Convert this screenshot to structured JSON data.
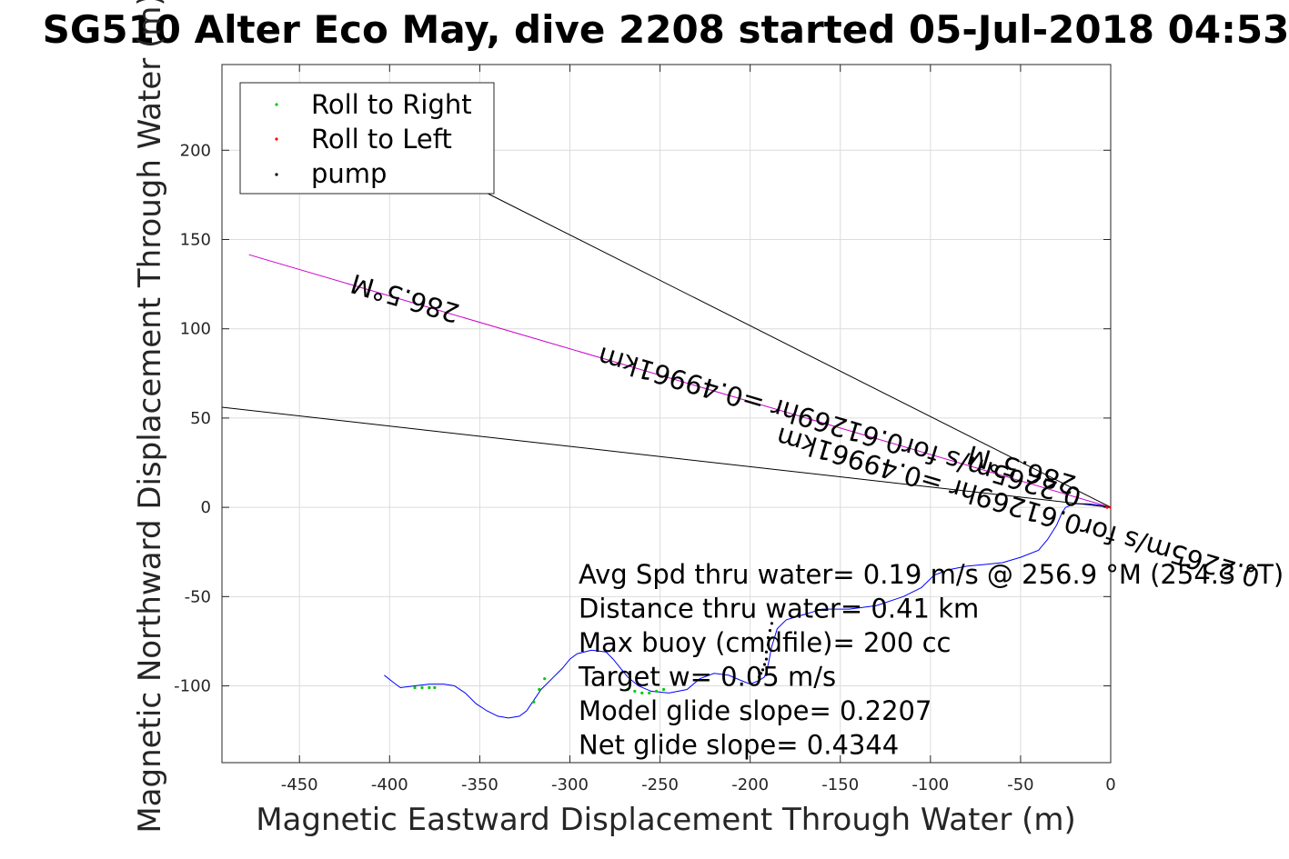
{
  "chart_data": {
    "type": "line",
    "title": "SG510 Alter Eco May, dive 2208 started 05-Jul-2018 04:53",
    "xlabel": "Magnetic Eastward Displacement Through Water (m)",
    "ylabel": "Magnetic Northward Displacement Through Water (m)",
    "xlim": [
      -493,
      0
    ],
    "ylim": [
      -143,
      248
    ],
    "xticks": [
      -450,
      -400,
      -350,
      -300,
      -250,
      -200,
      -150,
      -100,
      -50,
      0
    ],
    "yticks": [
      -100,
      -50,
      0,
      50,
      100,
      150,
      200
    ],
    "grid": true,
    "legend": {
      "placement": "top-left",
      "entries": [
        {
          "label": "Roll to Right",
          "color": "#00cc00"
        },
        {
          "label": "Roll to Left",
          "color": "#ff0000"
        },
        {
          "label": "pump",
          "color": "#000000"
        }
      ]
    },
    "series": [
      {
        "name": "",
        "style": "track",
        "color": "#0000ff",
        "x": [
          0,
          -5,
          -12,
          -20,
          -25,
          -27,
          -30,
          -35,
          -40,
          -50,
          -60,
          -70,
          -80,
          -90,
          -98,
          -105,
          -115,
          -130,
          -145,
          -160,
          -170,
          -180,
          -185,
          -188,
          -190,
          -192,
          -195,
          -200,
          -205,
          -212,
          -220,
          -228,
          -235,
          -245,
          -255,
          -262,
          -268,
          -272,
          -276,
          -280,
          -288,
          -296,
          -300,
          -304,
          -310,
          -316,
          -320,
          -324,
          -328,
          -334,
          -340,
          -346,
          -352,
          -358,
          -364,
          -370,
          -378,
          -386,
          -394,
          -398,
          -403
        ],
        "y": [
          0,
          1,
          2,
          2,
          0,
          -3,
          -10,
          -18,
          -24,
          -28,
          -31,
          -32,
          -33,
          -35,
          -38,
          -45,
          -50,
          -55,
          -57,
          -57,
          -60,
          -63,
          -68,
          -78,
          -88,
          -95,
          -97,
          -99,
          -97,
          -94,
          -93,
          -96,
          -102,
          -104,
          -103,
          -100,
          -95,
          -90,
          -85,
          -81,
          -80,
          -82,
          -85,
          -90,
          -96,
          -102,
          -108,
          -114,
          -117,
          -118,
          -117,
          -114,
          -110,
          -104,
          -100,
          -99,
          -99,
          -100,
          -101,
          -98,
          -94
        ]
      },
      {
        "name": "",
        "style": "heading",
        "color": "#cc00cc",
        "x": [
          0,
          -478
        ],
        "y": [
          0,
          141.5
        ]
      },
      {
        "name": "",
        "style": "bound",
        "color": "#000000",
        "x": [
          0,
          -497
        ],
        "y": [
          0,
          56.5
        ]
      },
      {
        "name": "",
        "style": "bound",
        "color": "#000000",
        "x": [
          0,
          -350
        ],
        "y": [
          0,
          178
        ]
      }
    ],
    "markers": {
      "roll_right": {
        "color": "#00cc00",
        "x": [
          -386,
          -382,
          -378,
          -375,
          -320,
          -317,
          -314,
          -268,
          -264,
          -260,
          -256,
          -252,
          -248
        ],
        "y": [
          -101,
          -101,
          -101,
          -101,
          -109,
          -102,
          -96,
          -102,
          -103,
          -104,
          -104,
          -103,
          -102
        ]
      },
      "roll_left": {
        "color": "#ff0000",
        "x": [
          0,
          -2
        ],
        "y": [
          0,
          0
        ]
      },
      "pump": {
        "color": "#000000",
        "x": [
          -188,
          -189,
          -190,
          -190,
          -191,
          -191,
          -192,
          -193,
          -194,
          -195
        ],
        "y": [
          -65,
          -69,
          -73,
          -77,
          -81,
          -85,
          -88,
          -91,
          -93,
          -95
        ]
      }
    },
    "annotations": [
      {
        "text": "286.5°M",
        "x": -390,
        "y": 122,
        "rotate": 196.5
      },
      {
        "text": "0.2265m/s for0.61269hr =0.49961km",
        "x": -149,
        "y": 50,
        "rotate": 196.5
      },
      {
        "text": "286.5°M",
        "x": -48,
        "y": 26,
        "rotate": 196.5
      },
      {
        "text": "0.2265m/s for0.61269hr =0.49961km",
        "x": -50,
        "y": 5,
        "rotate": 196.5
      }
    ],
    "stats_text": [
      "Avg Spd thru water=  0.19 m/s @ 256.9 °M (254.3 °T)",
      "Distance thru water=  0.41 km",
      "Max buoy (cmdfile)= 200 cc",
      "Target w= 0.05 m/s",
      "Model glide slope= 0.2207",
      "Net glide slope= 0.4344"
    ]
  }
}
